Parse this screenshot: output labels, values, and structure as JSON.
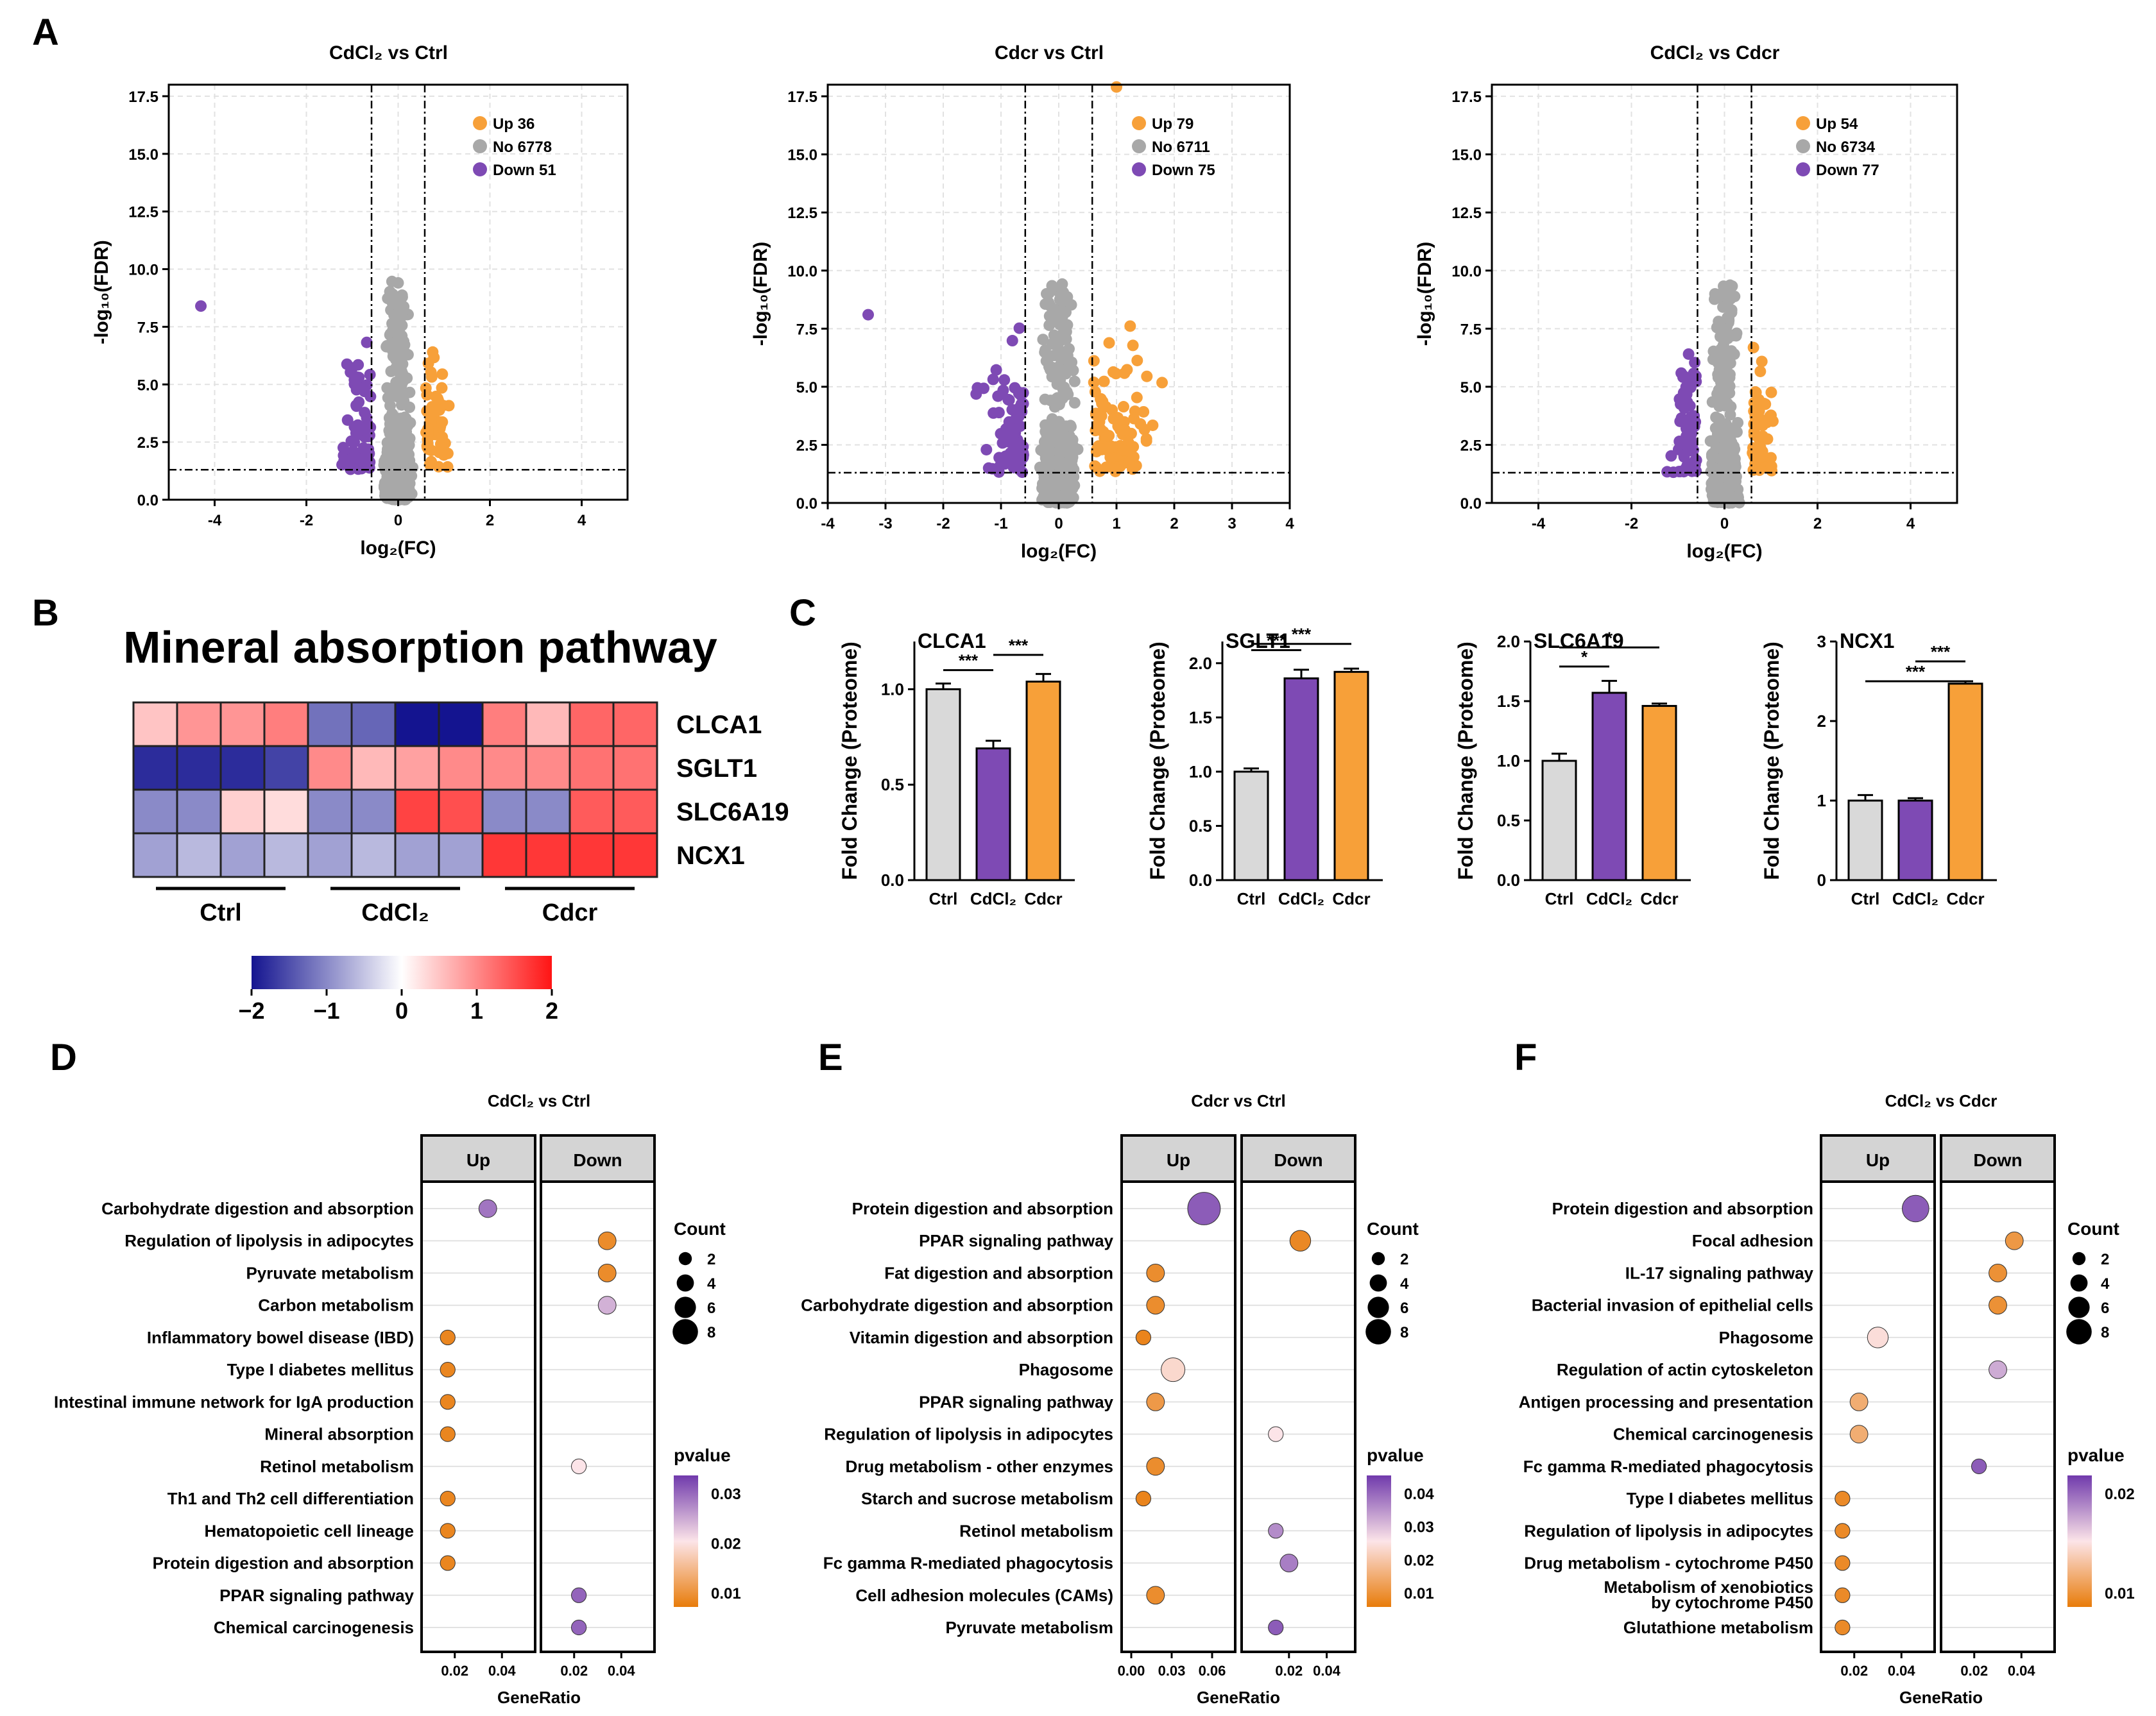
{
  "panel_letters": [
    "A",
    "B",
    "C",
    "D",
    "E",
    "F"
  ],
  "colors": {
    "up": "#F7A039",
    "no": "#A8A8A8",
    "down": "#7E4AB4",
    "grid": "#e2e2e2",
    "ctrl_bar": "#D9D9D9"
  },
  "volcano": {
    "xlabel": "log₂(FC)",
    "ylabel": "-log₁₀(FDR)",
    "plots": [
      {
        "title": "CdCl₂ vs Ctrl",
        "xlim": [
          -5,
          5
        ],
        "ylim": [
          0,
          18
        ],
        "xticks": [
          "-4",
          "-2",
          "0",
          "2",
          "4"
        ],
        "yticks": [
          "0.0",
          "2.5",
          "5.0",
          "7.5",
          "10.0",
          "12.5",
          "15.0",
          "17.5"
        ],
        "legend": [
          "Up 36",
          "No 6778",
          "Down 51"
        ]
      },
      {
        "title": "Cdcr vs Ctrl",
        "xlim": [
          -4,
          4
        ],
        "ylim": [
          0,
          18
        ],
        "xticks": [
          "-4",
          "-3",
          "-2",
          "-1",
          "0",
          "1",
          "2",
          "3",
          "4"
        ],
        "yticks": [
          "0.0",
          "2.5",
          "5.0",
          "7.5",
          "10.0",
          "12.5",
          "15.0",
          "17.5"
        ],
        "legend": [
          "Up 79",
          "No 6711",
          "Down 75"
        ]
      },
      {
        "title": "CdCl₂ vs Cdcr",
        "xlim": [
          -5,
          5
        ],
        "ylim": [
          0,
          18
        ],
        "xticks": [
          "-4",
          "-2",
          "0",
          "2",
          "4"
        ],
        "yticks": [
          "0.0",
          "2.5",
          "5.0",
          "7.5",
          "10.0",
          "12.5",
          "15.0",
          "17.5"
        ],
        "legend": [
          "Up 54",
          "No 6734",
          "Down 77"
        ]
      }
    ]
  },
  "heatmap": {
    "title": "Mineral absorption pathway",
    "genes": [
      "CLCA1",
      "SGLT1",
      "SLC6A19",
      "NCX1"
    ],
    "groups": [
      "Ctrl",
      "CdCl₂",
      "Cdcr"
    ],
    "values": [
      [
        0.5,
        0.9,
        0.9,
        1.1,
        -1.2,
        -1.3,
        -2.0,
        -2.0,
        1.1,
        0.6,
        1.3,
        1.3
      ],
      [
        -1.8,
        -1.8,
        -1.8,
        -1.6,
        1.0,
        0.6,
        0.8,
        1.0,
        1.0,
        1.0,
        1.2,
        1.2
      ],
      [
        -1.0,
        -1.0,
        0.4,
        0.3,
        -1.0,
        -1.0,
        1.6,
        1.5,
        -1.0,
        -1.0,
        1.4,
        1.4
      ],
      [
        -0.8,
        -0.6,
        -0.8,
        -0.6,
        -0.8,
        -0.6,
        -0.8,
        -0.8,
        1.7,
        1.7,
        1.7,
        1.7
      ]
    ],
    "scale_ticks": [
      "−2",
      "−1",
      "0",
      "1",
      "2"
    ]
  },
  "bars": {
    "ylabel": "Fold Change (Proteome)",
    "categories": [
      "Ctrl",
      "CdCl₂",
      "Cdcr"
    ],
    "plots": [
      {
        "gene": "CLCA1",
        "ymax": 1.25,
        "yticks": [
          "0.0",
          "0.5",
          "1.0"
        ],
        "values": [
          1.0,
          0.69,
          1.04
        ],
        "errors": [
          0.03,
          0.04,
          0.04
        ],
        "sig": [
          "***",
          "***"
        ]
      },
      {
        "gene": "SGLT1",
        "ymax": 2.2,
        "yticks": [
          "0.0",
          "0.5",
          "1.0",
          "1.5",
          "2.0"
        ],
        "values": [
          1.0,
          1.86,
          1.92
        ],
        "errors": [
          0.03,
          0.08,
          0.03
        ],
        "sig": [
          "***",
          "***"
        ]
      },
      {
        "gene": "SLC6A19",
        "ymax": 2.0,
        "yticks": [
          "0.0",
          "0.5",
          "1.0",
          "1.5",
          "2.0"
        ],
        "values": [
          1.0,
          1.57,
          1.46
        ],
        "errors": [
          0.06,
          0.1,
          0.02
        ],
        "sig": [
          "*",
          "*"
        ]
      },
      {
        "gene": "NCX1",
        "ymax": 3.0,
        "yticks": [
          "0",
          "1",
          "2",
          "3"
        ],
        "values": [
          1.0,
          1.0,
          2.47
        ],
        "errors": [
          0.07,
          0.03,
          0.03
        ],
        "sig": [
          "***",
          "***"
        ]
      }
    ]
  },
  "dotplots": {
    "xlabel": "GeneRatio",
    "facets": [
      "Up",
      "Down"
    ],
    "count_title": "Count",
    "count_values": [
      "2",
      "4",
      "6",
      "8"
    ],
    "pvalue_title": "pvalue",
    "plots": [
      {
        "title": "CdCl₂ vs Ctrl",
        "xticks": [
          "0.02",
          "0.04"
        ],
        "pticks": [
          "0.03",
          "0.02",
          "0.01"
        ],
        "terms": [
          "Carbohydrate digestion and absorption",
          "Regulation of lipolysis in adipocytes",
          "Pyruvate metabolism",
          "Carbon metabolism",
          "Inflammatory bowel disease (IBD)",
          "Type I diabetes mellitus",
          "Intestinal immune network for IgA production",
          "Mineral absorption",
          "Retinol metabolism",
          "Th1 and Th2 cell differentiation",
          "Hematopoietic cell lineage",
          "Protein digestion and absorption",
          "PPAR signaling pathway",
          "Chemical carcinogenesis"
        ],
        "points": [
          {
            "facet": "Up",
            "term": 0,
            "ratio": 0.034,
            "count": 3,
            "p": 0.033
          },
          {
            "facet": "Down",
            "term": 1,
            "ratio": 0.034,
            "count": 3,
            "p": 0.003
          },
          {
            "facet": "Down",
            "term": 2,
            "ratio": 0.034,
            "count": 3,
            "p": 0.003
          },
          {
            "facet": "Down",
            "term": 3,
            "ratio": 0.034,
            "count": 3,
            "p": 0.026
          },
          {
            "facet": "Up",
            "term": 4,
            "ratio": 0.017,
            "count": 2,
            "p": 0.002
          },
          {
            "facet": "Up",
            "term": 5,
            "ratio": 0.017,
            "count": 2,
            "p": 0.002
          },
          {
            "facet": "Up",
            "term": 6,
            "ratio": 0.017,
            "count": 2,
            "p": 0.002
          },
          {
            "facet": "Up",
            "term": 7,
            "ratio": 0.017,
            "count": 2,
            "p": 0.002
          },
          {
            "facet": "Down",
            "term": 8,
            "ratio": 0.022,
            "count": 2,
            "p": 0.02
          },
          {
            "facet": "Up",
            "term": 9,
            "ratio": 0.017,
            "count": 2,
            "p": 0.002
          },
          {
            "facet": "Up",
            "term": 10,
            "ratio": 0.017,
            "count": 2,
            "p": 0.002
          },
          {
            "facet": "Up",
            "term": 11,
            "ratio": 0.017,
            "count": 2,
            "p": 0.002
          },
          {
            "facet": "Down",
            "term": 12,
            "ratio": 0.022,
            "count": 2,
            "p": 0.035
          },
          {
            "facet": "Down",
            "term": 13,
            "ratio": 0.022,
            "count": 2,
            "p": 0.035
          }
        ]
      },
      {
        "title": "Cdcr vs Ctrl",
        "xticks": [
          "0.00",
          "0.03",
          "0.06",
          "0.02",
          "0.04"
        ],
        "pticks": [
          "0.04",
          "0.03",
          "0.02",
          "0.01"
        ],
        "terms": [
          "Protein digestion and absorption",
          "PPAR signaling pathway",
          "Fat digestion and absorption",
          "Carbohydrate digestion and absorption",
          "Vitamin digestion and absorption",
          "Phagosome",
          "PPAR signaling pathway",
          "Regulation of lipolysis in adipocytes",
          "Drug metabolism - other enzymes",
          "Starch and sucrose metabolism",
          "Retinol metabolism",
          "Fc gamma R-mediated phagocytosis",
          "Cell adhesion molecules (CAMs)",
          "Pyruvate metabolism"
        ],
        "points": [
          {
            "facet": "Up",
            "term": 0,
            "ratio": 0.054,
            "count": 8,
            "p": 0.045
          },
          {
            "facet": "Down",
            "term": 1,
            "ratio": 0.026,
            "count": 4,
            "p": 0.003
          },
          {
            "facet": "Up",
            "term": 2,
            "ratio": 0.018,
            "count": 3,
            "p": 0.004
          },
          {
            "facet": "Up",
            "term": 3,
            "ratio": 0.018,
            "count": 3,
            "p": 0.004
          },
          {
            "facet": "Up",
            "term": 4,
            "ratio": 0.009,
            "count": 2,
            "p": 0.002
          },
          {
            "facet": "Up",
            "term": 5,
            "ratio": 0.031,
            "count": 5,
            "p": 0.022
          },
          {
            "facet": "Up",
            "term": 6,
            "ratio": 0.018,
            "count": 3,
            "p": 0.007
          },
          {
            "facet": "Down",
            "term": 7,
            "ratio": 0.013,
            "count": 2,
            "p": 0.025
          },
          {
            "facet": "Up",
            "term": 8,
            "ratio": 0.018,
            "count": 3,
            "p": 0.004
          },
          {
            "facet": "Up",
            "term": 9,
            "ratio": 0.009,
            "count": 2,
            "p": 0.002
          },
          {
            "facet": "Down",
            "term": 10,
            "ratio": 0.013,
            "count": 2,
            "p": 0.038
          },
          {
            "facet": "Down",
            "term": 11,
            "ratio": 0.02,
            "count": 3,
            "p": 0.04
          },
          {
            "facet": "Up",
            "term": 12,
            "ratio": 0.018,
            "count": 3,
            "p": 0.004
          },
          {
            "facet": "Down",
            "term": 13,
            "ratio": 0.013,
            "count": 2,
            "p": 0.045
          }
        ]
      },
      {
        "title": "CdCl₂ vs Cdcr",
        "xticks": [
          "0.02",
          "0.04",
          "0.02",
          "0.04"
        ],
        "pticks": [
          "0.02",
          "0.01"
        ],
        "terms": [
          "Protein digestion and absorption",
          "Focal adhesion",
          "IL-17 signaling pathway",
          "Bacterial invasion of epithelial cells",
          "Phagosome",
          "Regulation of actin cytoskeleton",
          "Antigen processing and presentation",
          "Chemical carcinogenesis",
          "Fc gamma R-mediated phagocytosis",
          "Type I diabetes mellitus",
          "Regulation of lipolysis in adipocytes",
          "Drug metabolism - cytochrome P450",
          "Metabolism of xenobiotics",
          "by cytochrome P450",
          "Glutathione metabolism"
        ],
        "points": [
          {
            "facet": "Up",
            "row": 0,
            "ratio": 0.046,
            "count": 6,
            "p": 0.027
          },
          {
            "facet": "Down",
            "row": 1,
            "ratio": 0.037,
            "count": 3,
            "p": 0.004
          },
          {
            "facet": "Down",
            "row": 2,
            "ratio": 0.03,
            "count": 3,
            "p": 0.003
          },
          {
            "facet": "Down",
            "row": 3,
            "ratio": 0.03,
            "count": 3,
            "p": 0.003
          },
          {
            "facet": "Up",
            "row": 4,
            "ratio": 0.03,
            "count": 4,
            "p": 0.014
          },
          {
            "facet": "Down",
            "row": 5,
            "ratio": 0.03,
            "count": 3,
            "p": 0.02
          },
          {
            "facet": "Up",
            "row": 6,
            "ratio": 0.022,
            "count": 3,
            "p": 0.007
          },
          {
            "facet": "Up",
            "row": 7,
            "ratio": 0.022,
            "count": 3,
            "p": 0.007
          },
          {
            "facet": "Down",
            "row": 8,
            "ratio": 0.022,
            "count": 2,
            "p": 0.027
          },
          {
            "facet": "Up",
            "row": 9,
            "ratio": 0.015,
            "count": 2,
            "p": 0.002
          },
          {
            "facet": "Up",
            "row": 10,
            "ratio": 0.015,
            "count": 2,
            "p": 0.002
          },
          {
            "facet": "Up",
            "row": 11,
            "ratio": 0.015,
            "count": 2,
            "p": 0.002
          },
          {
            "facet": "Up",
            "row": 12,
            "ratio": 0.015,
            "count": 2,
            "p": 0.002
          },
          {
            "facet": "Up",
            "row": 13,
            "ratio": 0.015,
            "count": 2,
            "p": 0.002
          }
        ]
      }
    ]
  }
}
